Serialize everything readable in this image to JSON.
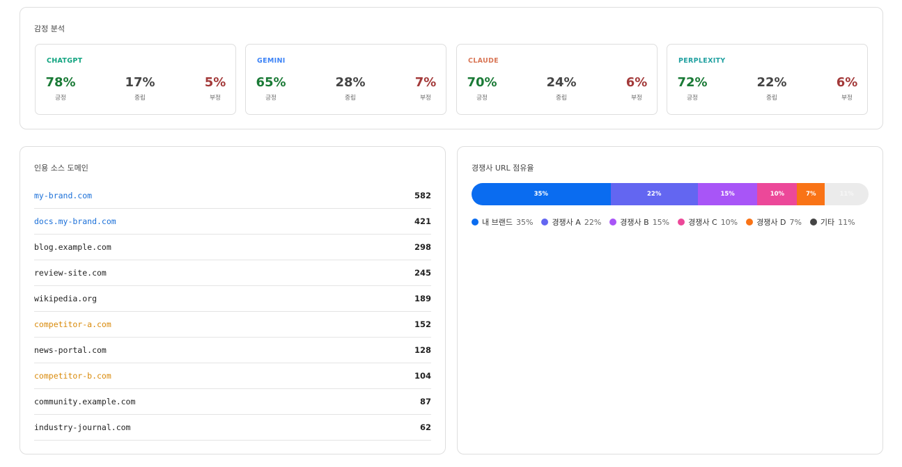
{
  "sentiment": {
    "title": "감정 분석",
    "labels": [
      "긍정",
      "중립",
      "부정"
    ],
    "label_colors": [
      "#1a7a36",
      "#444444",
      "#a33a3a"
    ],
    "cards": [
      {
        "name": "CHATGPT",
        "color": "#10a37f",
        "values": [
          "78%",
          "17%",
          "5%"
        ]
      },
      {
        "name": "GEMINI",
        "color": "#3b82f6",
        "values": [
          "65%",
          "28%",
          "7%"
        ]
      },
      {
        "name": "CLAUDE",
        "color": "#d97757",
        "values": [
          "70%",
          "24%",
          "6%"
        ]
      },
      {
        "name": "PERPLEXITY",
        "color": "#20a0a0",
        "values": [
          "72%",
          "22%",
          "6%"
        ]
      }
    ]
  },
  "citations": {
    "title": "인용 소스 도메인",
    "rows": [
      {
        "domain": "my-brand.com",
        "count": "582",
        "color": "#1a6fd8"
      },
      {
        "domain": "docs.my-brand.com",
        "count": "421",
        "color": "#1a6fd8"
      },
      {
        "domain": "blog.example.com",
        "count": "298",
        "color": "#222222"
      },
      {
        "domain": "review-site.com",
        "count": "245",
        "color": "#222222"
      },
      {
        "domain": "wikipedia.org",
        "count": "189",
        "color": "#222222"
      },
      {
        "domain": "competitor-a.com",
        "count": "152",
        "color": "#d98a0a"
      },
      {
        "domain": "news-portal.com",
        "count": "128",
        "color": "#222222"
      },
      {
        "domain": "competitor-b.com",
        "count": "104",
        "color": "#d98a0a"
      },
      {
        "domain": "community.example.com",
        "count": "87",
        "color": "#222222"
      },
      {
        "domain": "industry-journal.com",
        "count": "62",
        "color": "#222222"
      }
    ]
  },
  "chart_data": {
    "type": "stacked-bar",
    "title": "경쟁사 URL 점유율",
    "categories": [
      "내 브랜드",
      "경쟁사 A",
      "경쟁사 B",
      "경쟁사 C",
      "경쟁사 D",
      "기타"
    ],
    "values": [
      35,
      22,
      15,
      10,
      7,
      11
    ],
    "value_labels": [
      "35%",
      "22%",
      "15%",
      "10%",
      "7%",
      "11%"
    ],
    "colors": [
      "#0a6cf0",
      "#6366f1",
      "#a855f7",
      "#ec4899",
      "#f97316",
      "#ebebeb"
    ],
    "legend_colors": [
      "#0a6cf0",
      "#6366f1",
      "#a855f7",
      "#ec4899",
      "#f97316",
      "#444444"
    ]
  }
}
